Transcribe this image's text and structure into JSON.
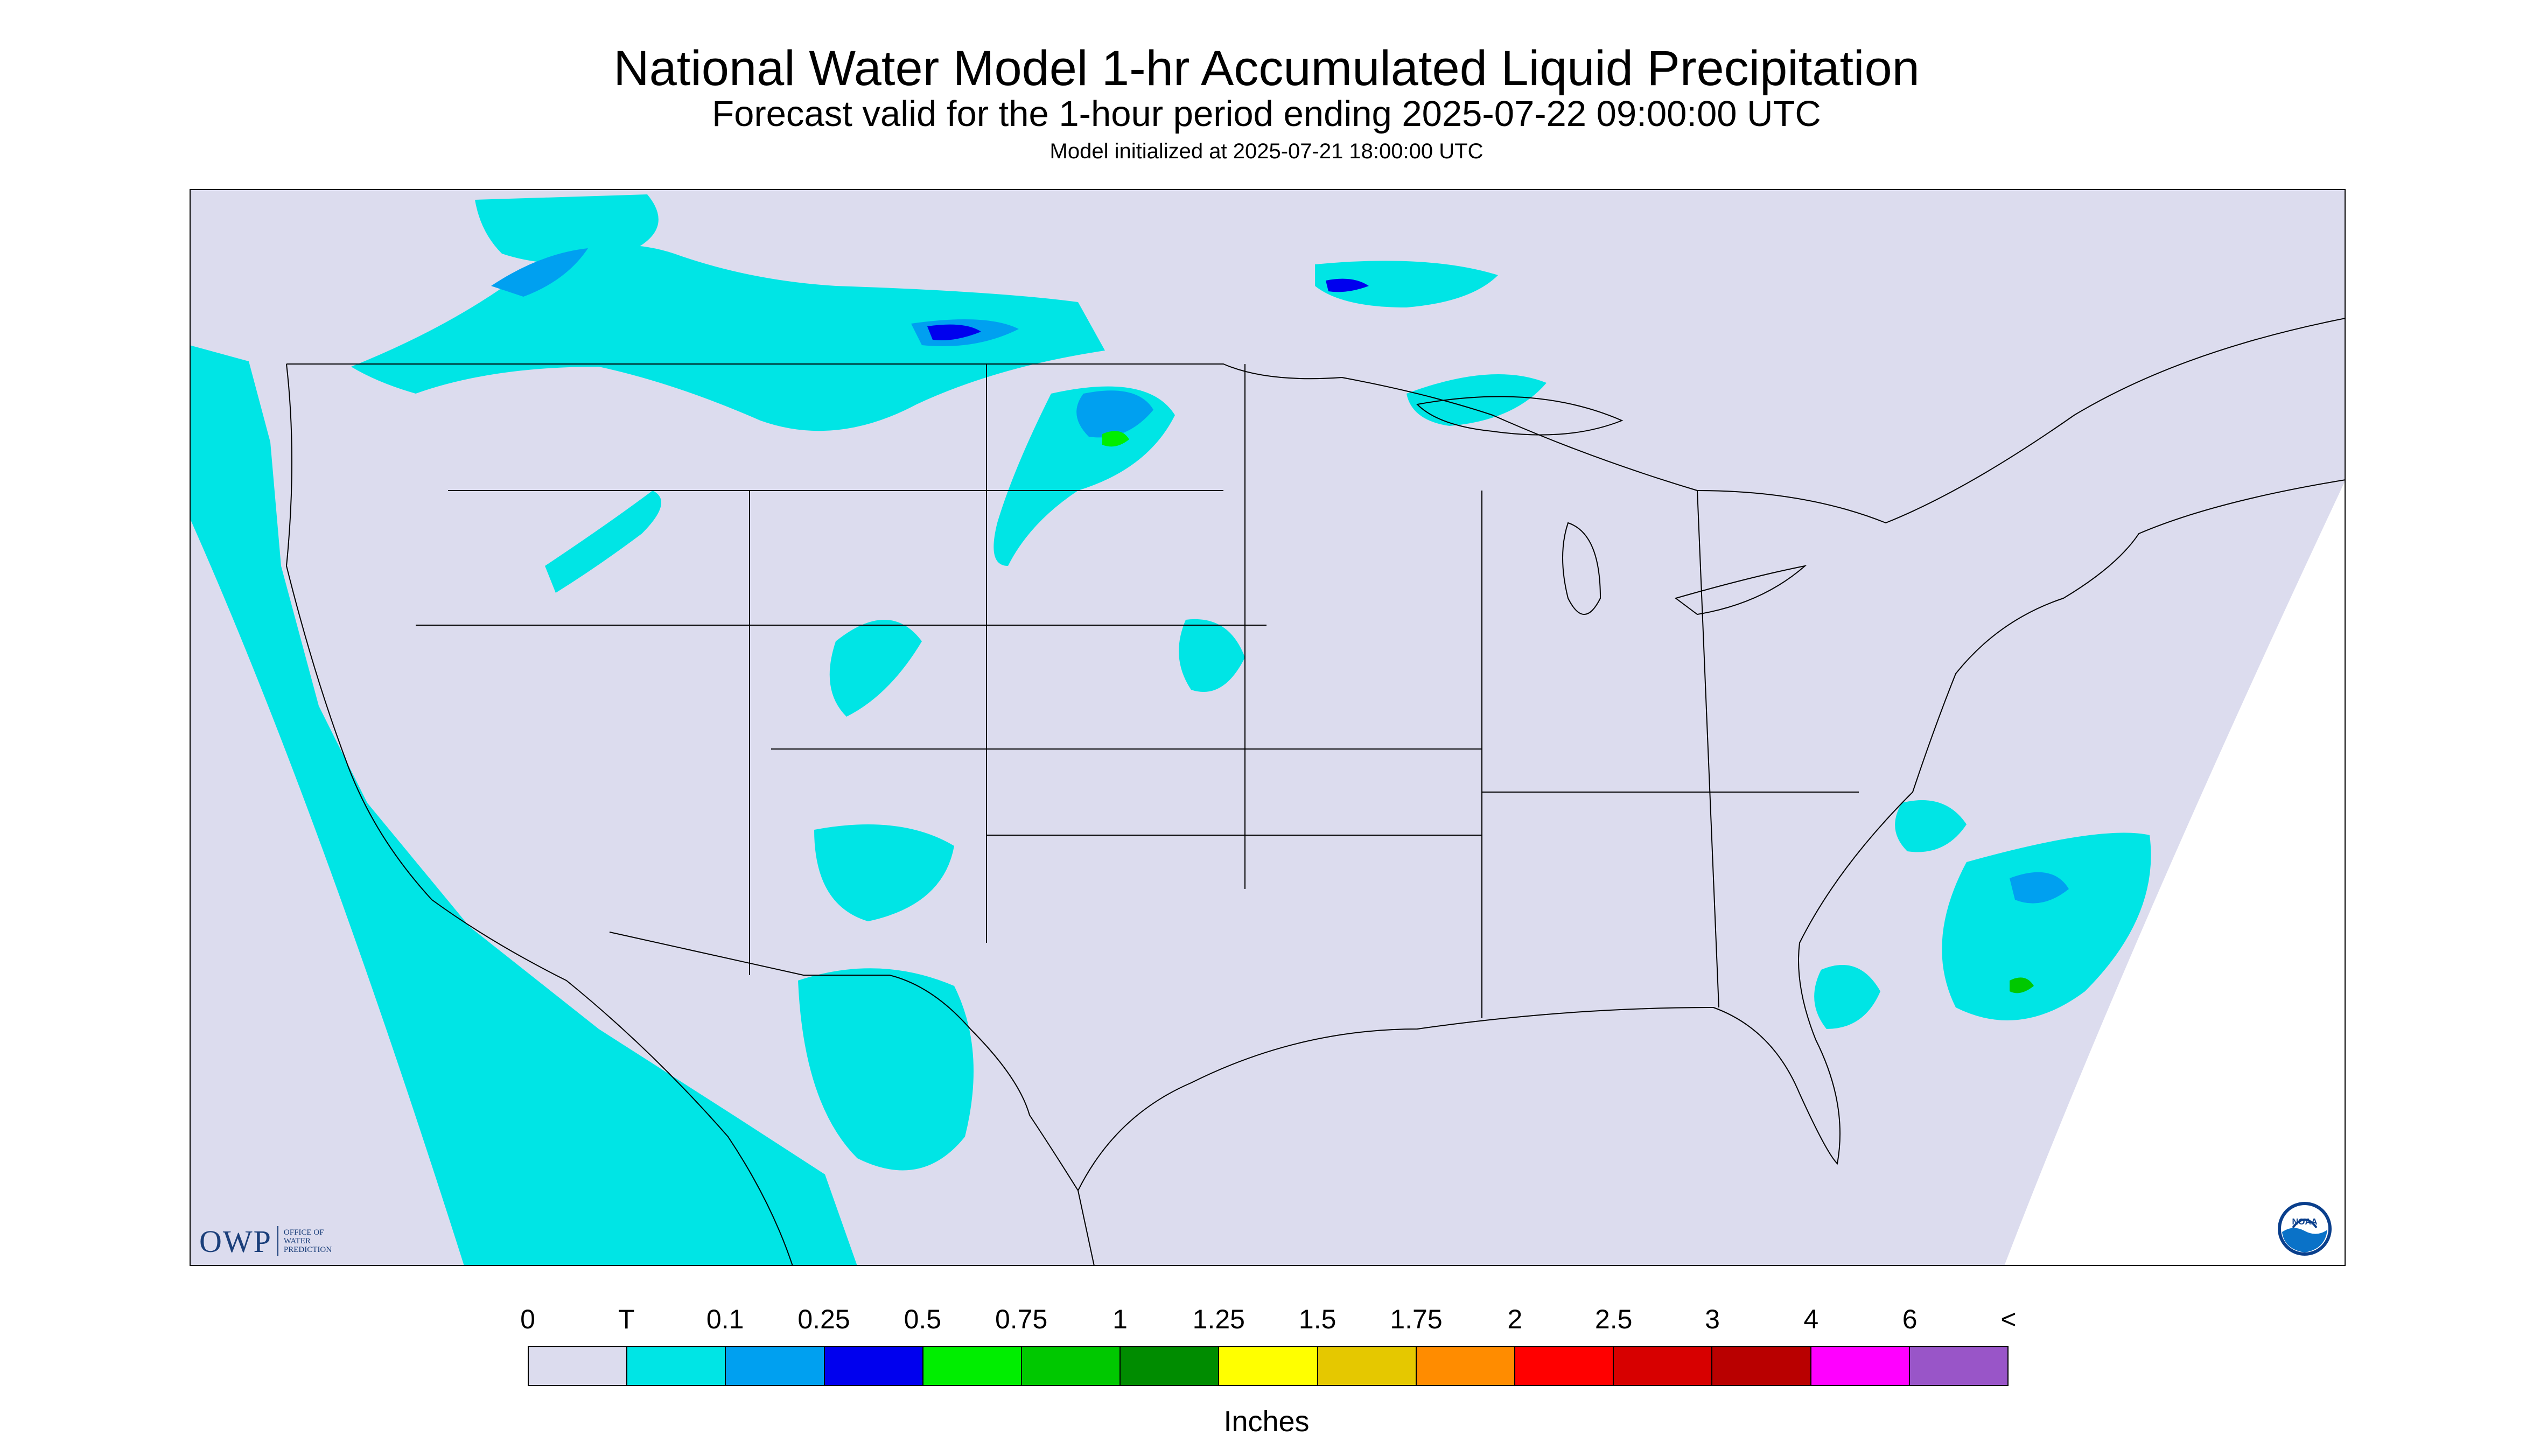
{
  "header": {
    "title": "National Water Model 1-hr Accumulated Liquid Precipitation",
    "subtitle": "Forecast valid for the 1-hour period ending 2025-07-22 09:00:00 UTC",
    "init": "Model initialized at 2025-07-21 18:00:00 UTC"
  },
  "map": {
    "background_color": "#dcdcee",
    "outside_domain_color": "#ffffff",
    "border_color": "#000000",
    "precip_colors": {
      "trace": "#00e5e5",
      "light": "#00a0f0",
      "moderate": "#0000ee",
      "heavy": "#00ee00",
      "very_heavy": "#00c800"
    }
  },
  "logos": {
    "owp_mark": "OWP",
    "owp_text": [
      "OFFICE OF",
      "WATER",
      "PREDICTION"
    ],
    "noaa_label": "NOAA",
    "noaa_icon": "noaa-logo-icon"
  },
  "legend": {
    "labels": [
      "0",
      "T",
      "0.1",
      "0.25",
      "0.5",
      "0.75",
      "1",
      "1.25",
      "1.5",
      "1.75",
      "2",
      "2.5",
      "3",
      "4",
      "6",
      "<"
    ],
    "colors": [
      "#dcdcee",
      "#00e5e5",
      "#00a0f0",
      "#0000ee",
      "#00ee00",
      "#00c800",
      "#008c00",
      "#ffff00",
      "#e5c800",
      "#ff8c00",
      "#ff0000",
      "#d70000",
      "#b90000",
      "#ff00ff",
      "#9955c8"
    ],
    "units": "Inches"
  }
}
